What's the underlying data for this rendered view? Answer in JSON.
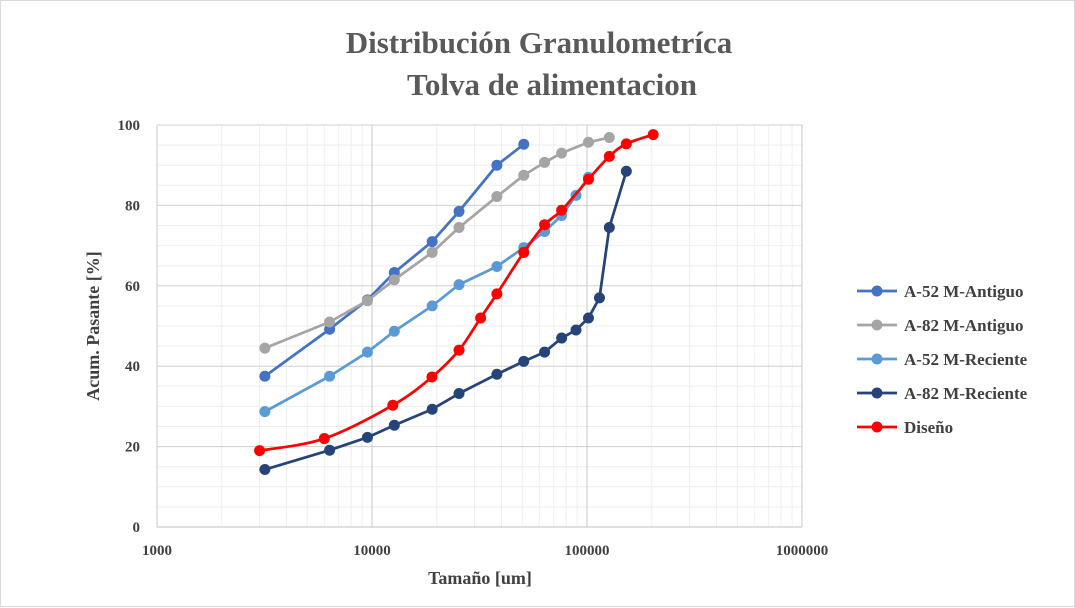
{
  "chart_data": {
    "type": "line",
    "title": [
      "Distribución Granulometríca",
      "Tolva de alimentacion"
    ],
    "xlabel": "Tamaño [um]",
    "ylabel": "Acum. Pasante [%]",
    "x_scale": "log",
    "xlim": [
      1000,
      1000000
    ],
    "ylim": [
      0,
      100
    ],
    "x_tick_labels": [
      "1000",
      "10000",
      "100000",
      "1000000"
    ],
    "y_tick_labels": [
      "0",
      "20",
      "40",
      "60",
      "80",
      "100"
    ],
    "grid": true,
    "legend_position": "right",
    "series": [
      {
        "name": "A-52 M-Antiguo",
        "color": "#4472c4",
        "smooth": false,
        "points": [
          [
            3175,
            37.5
          ],
          [
            6350,
            49.2
          ],
          [
            9525,
            56.5
          ],
          [
            12700,
            63.3
          ],
          [
            19050,
            71.0
          ],
          [
            25400,
            78.5
          ],
          [
            38100,
            90.0
          ],
          [
            50800,
            95.2
          ]
        ]
      },
      {
        "name": "A-82 M-Antiguo",
        "color": "#a5a5a5",
        "smooth": false,
        "points": [
          [
            3175,
            44.5
          ],
          [
            6350,
            51.0
          ],
          [
            9525,
            56.3
          ],
          [
            12700,
            61.5
          ],
          [
            19050,
            68.3
          ],
          [
            25400,
            74.5
          ],
          [
            38100,
            82.2
          ],
          [
            50800,
            87.5
          ],
          [
            63500,
            90.7
          ],
          [
            76200,
            93.0
          ],
          [
            101600,
            95.7
          ],
          [
            127000,
            96.9
          ]
        ]
      },
      {
        "name": "A-52 M-Reciente",
        "color": "#5b9bd5",
        "smooth": false,
        "points": [
          [
            3175,
            28.7
          ],
          [
            6350,
            37.5
          ],
          [
            9525,
            43.5
          ],
          [
            12700,
            48.7
          ],
          [
            19050,
            55.0
          ],
          [
            25400,
            60.3
          ],
          [
            38100,
            64.8
          ],
          [
            50800,
            69.5
          ],
          [
            63500,
            73.5
          ],
          [
            76200,
            77.5
          ],
          [
            88900,
            82.5
          ],
          [
            101600,
            87.0
          ]
        ]
      },
      {
        "name": "A-82 M-Reciente",
        "color": "#264478",
        "smooth": false,
        "points": [
          [
            3175,
            14.3
          ],
          [
            6350,
            19.1
          ],
          [
            9525,
            22.3
          ],
          [
            12700,
            25.3
          ],
          [
            19050,
            29.3
          ],
          [
            25400,
            33.2
          ],
          [
            38100,
            38.0
          ],
          [
            50800,
            41.2
          ],
          [
            63500,
            43.5
          ],
          [
            76200,
            47.0
          ],
          [
            88900,
            49.0
          ],
          [
            101600,
            52.0
          ],
          [
            114300,
            57.0
          ],
          [
            127000,
            74.5
          ],
          [
            152400,
            88.5
          ]
        ]
      },
      {
        "name": "Diseño",
        "color": "#ff0000",
        "smooth": true,
        "points": [
          [
            3000,
            19.0
          ],
          [
            6000,
            22.0
          ],
          [
            12500,
            30.3
          ],
          [
            19000,
            37.3
          ],
          [
            25400,
            44.0
          ],
          [
            32000,
            52.0
          ],
          [
            38100,
            58.0
          ],
          [
            50800,
            68.3
          ],
          [
            63500,
            75.2
          ],
          [
            76200,
            78.8
          ],
          [
            101600,
            86.5
          ],
          [
            127000,
            92.2
          ],
          [
            152400,
            95.3
          ],
          [
            203200,
            97.6
          ]
        ]
      }
    ]
  }
}
